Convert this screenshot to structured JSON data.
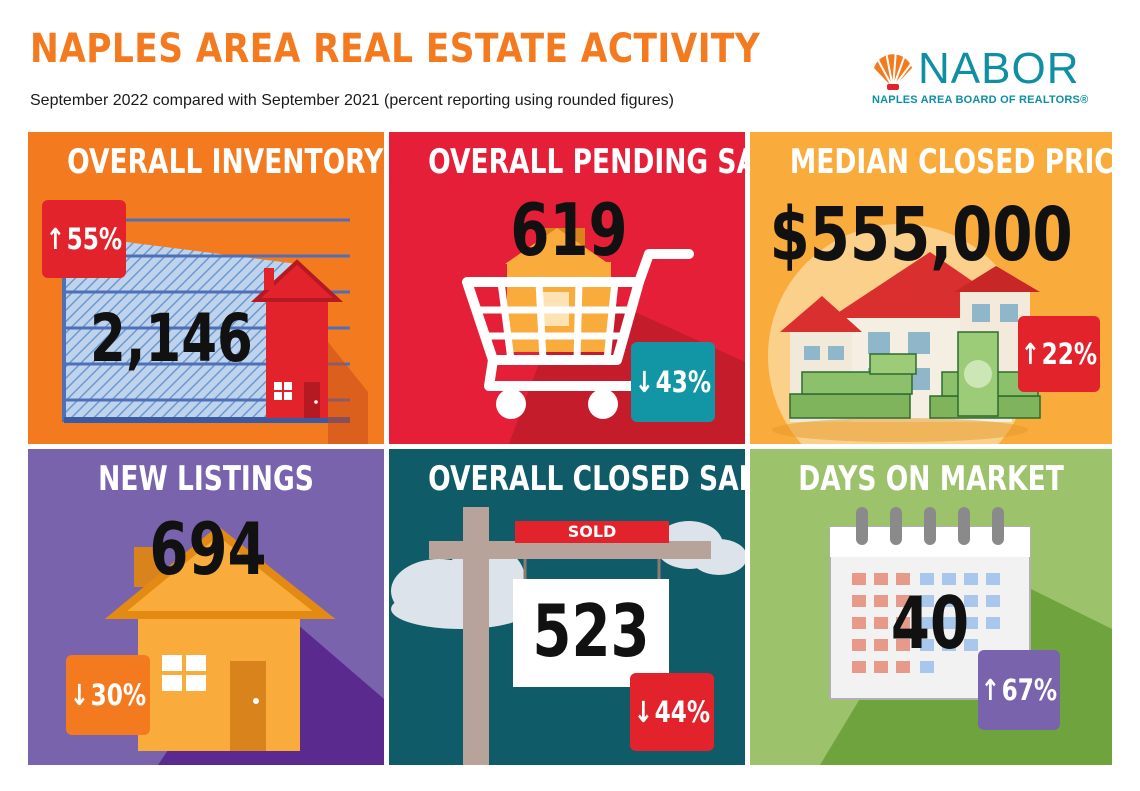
{
  "header": {
    "title": "NAPLES AREA REAL ESTATE ACTIVITY",
    "subtitle": "September 2022 compared with September 2021 (percent reporting using rounded figures)"
  },
  "logo": {
    "name": "NABOR",
    "full_name": "NAPLES AREA BOARD OF REALTORS®",
    "icon": "shell-icon",
    "color": "#0e8fa3"
  },
  "tiles": [
    {
      "title": "OVERALL INVENTORY",
      "value": "2,146",
      "change": "55%",
      "direction": "up",
      "bg": "#f47a20",
      "badge_color": "#e3232c",
      "icon": "house-chart-icon"
    },
    {
      "title": "OVERALL PENDING SALES",
      "value": "619",
      "change": "43%",
      "direction": "down",
      "bg": "#e51f37",
      "badge_color": "#1296a5",
      "icon": "shopping-cart-icon"
    },
    {
      "title": "MEDIAN CLOSED PRICE",
      "value": "$555,000",
      "change": "22%",
      "direction": "up",
      "bg": "#f9ab3b",
      "badge_color": "#e3232c",
      "icon": "house-money-icon"
    },
    {
      "title": "NEW LISTINGS",
      "value": "694",
      "change": "30%",
      "direction": "down",
      "bg": "#7a63ad",
      "badge_color": "#f47a20",
      "icon": "house-icon"
    },
    {
      "title": "OVERALL CLOSED SALES",
      "value": "523",
      "change": "44%",
      "direction": "down",
      "bg": "#0f5b68",
      "badge_color": "#e3232c",
      "icon": "sold-sign-icon",
      "sign_label": "SOLD"
    },
    {
      "title": "DAYS ON MARKET",
      "value": "40",
      "change": "67%",
      "direction": "up",
      "bg": "#9cc36b",
      "badge_color": "#7a63ad",
      "icon": "calendar-icon"
    }
  ],
  "arrows": {
    "up": "↑",
    "down": "↓"
  }
}
